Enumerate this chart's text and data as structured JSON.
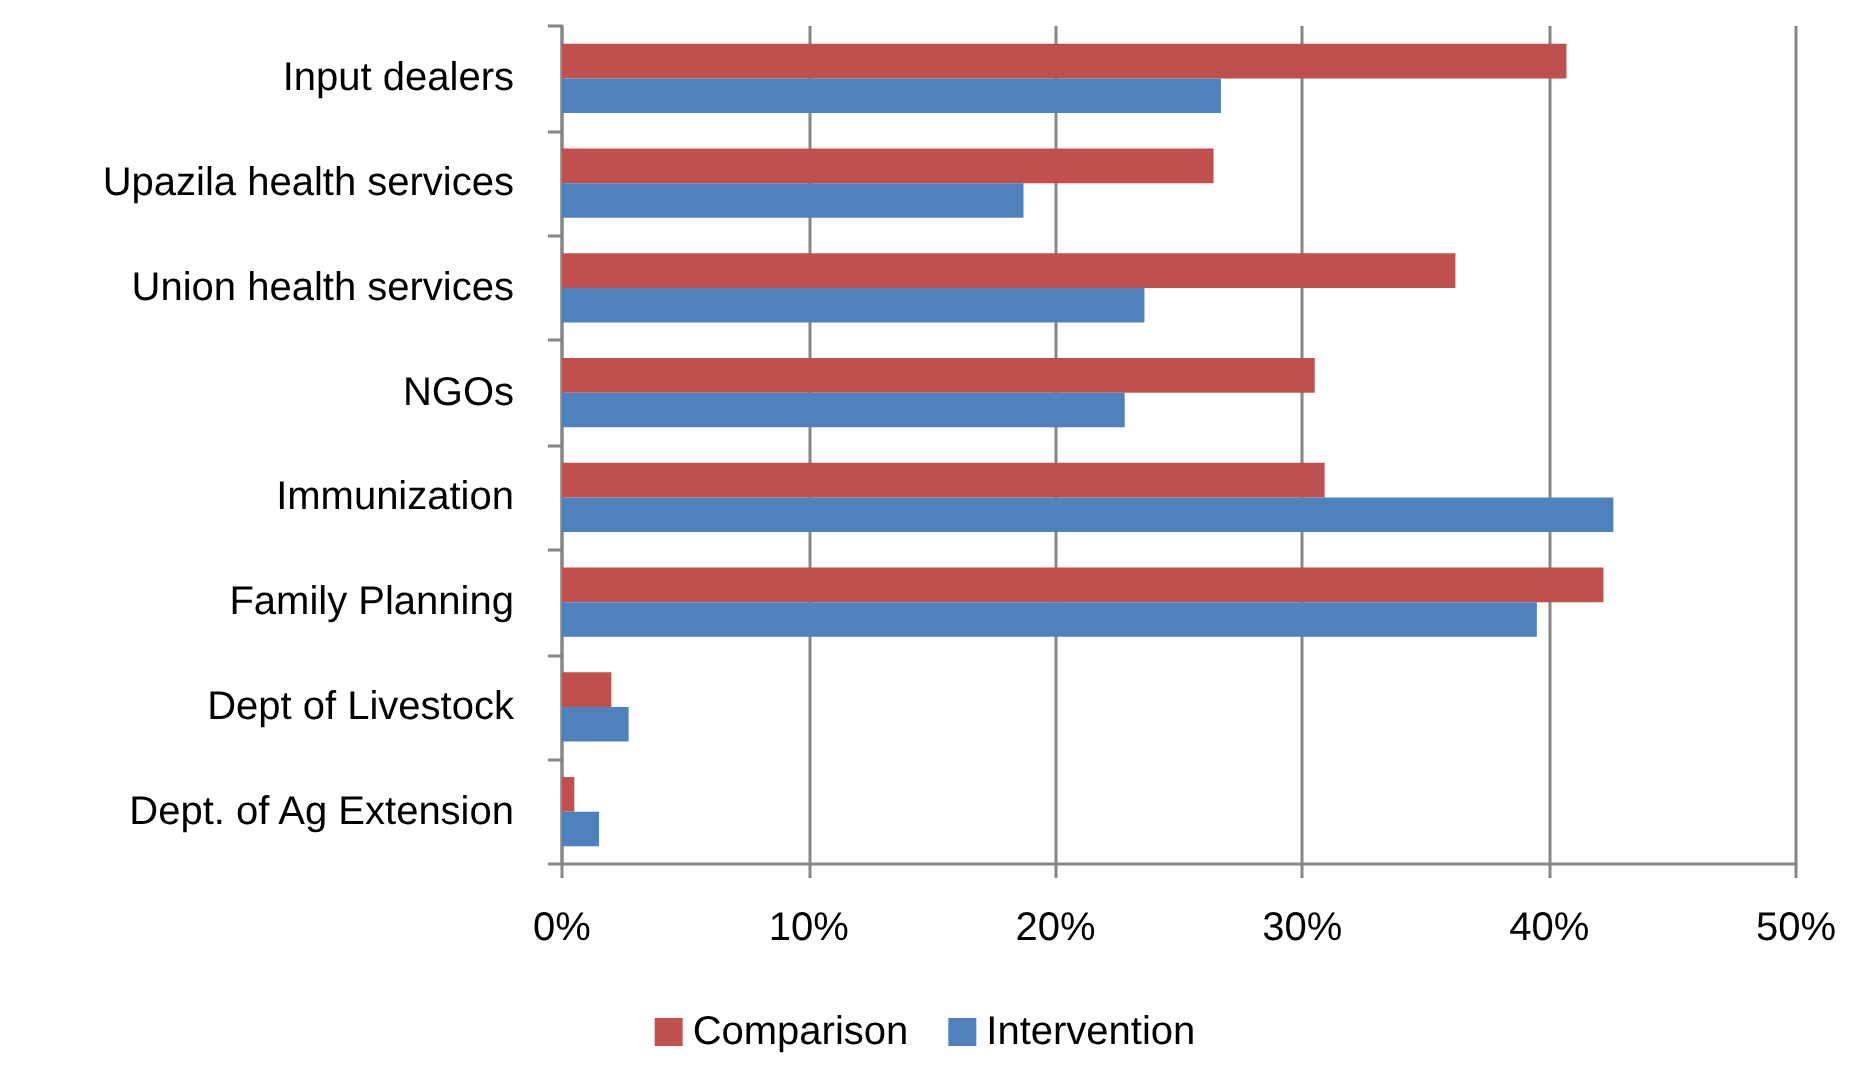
{
  "chart_data": {
    "type": "bar",
    "orientation": "horizontal",
    "categories": [
      "Input dealers",
      "Upazila health services",
      "Union health services",
      "NGOs",
      "Immunization",
      "Family Planning",
      "Dept of Livestock",
      "Dept. of Ag Extension"
    ],
    "series": [
      {
        "name": "Comparison",
        "color": "#c0504d",
        "values": [
          40.7,
          26.4,
          36.2,
          30.5,
          30.9,
          42.2,
          2.0,
          0.5
        ]
      },
      {
        "name": "Intervention",
        "color": "#4f81bd",
        "values": [
          26.7,
          18.7,
          23.6,
          22.8,
          42.6,
          39.5,
          2.7,
          1.5
        ]
      }
    ],
    "xlim": [
      0,
      50
    ],
    "xticks": [
      {
        "value": 0,
        "label": "0%"
      },
      {
        "value": 10,
        "label": "10%"
      },
      {
        "value": 20,
        "label": "20%"
      },
      {
        "value": 30,
        "label": "30%"
      },
      {
        "value": 40,
        "label": "40%"
      },
      {
        "value": 50,
        "label": "50%"
      }
    ],
    "grid": "x",
    "legend": "bottom"
  }
}
